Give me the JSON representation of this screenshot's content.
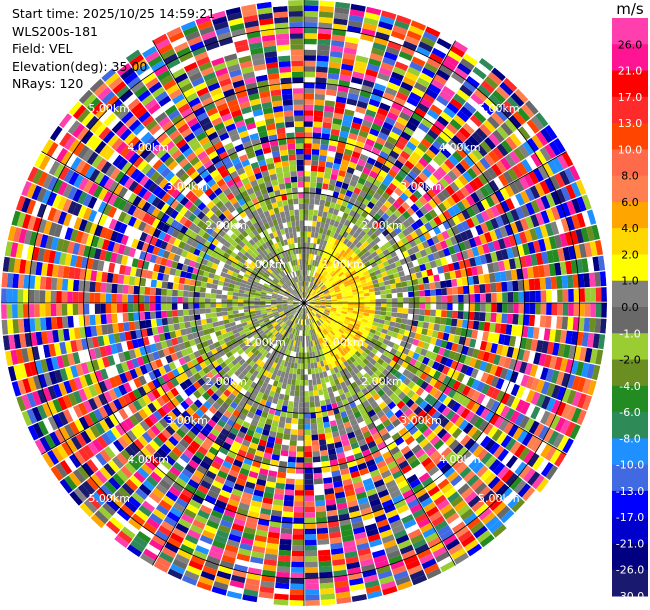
{
  "info": {
    "start_time": "Start time: 2025/10/25 14:59:21",
    "instrument": "WLS200s-181",
    "field": "Field: VEL",
    "elevation": "Elevation(deg): 35.00",
    "nrays": "NRays: 120"
  },
  "colorbar": {
    "unit": "m/s",
    "ticks": [
      "26.0",
      "21.0",
      "17.0",
      "13.0",
      "10.0",
      "8.0",
      "6.0",
      "4.0",
      "2.0",
      "1.0",
      "0.0",
      "-1.0",
      "-2.0",
      "-4.0",
      "-6.0",
      "-8.0",
      "-10.0",
      "-13.0",
      "-17.0",
      "-21.0",
      "-26.0",
      "-30.0"
    ],
    "colors": [
      "#ff3fae",
      "#ff1493",
      "#ff0000",
      "#ff2a2a",
      "#ff4500",
      "#ff6a4a",
      "#ff7f50",
      "#ffa500",
      "#ffd700",
      "#ffff00",
      "#808080",
      "#696969",
      "#9acd32",
      "#6b8e23",
      "#228b22",
      "#2e8b57",
      "#1e90ff",
      "#4169e1",
      "#0000ff",
      "#0000cd",
      "#000080",
      "#191970"
    ]
  },
  "chart_data": {
    "type": "heatmap",
    "projection": "polar-ppi",
    "field": "VEL",
    "rays": 120,
    "ring_ranges_km": [
      1.0,
      2.0,
      3.0,
      4.0,
      5.0
    ],
    "range_labels": [
      "1.00km",
      "2.00km",
      "3.00km",
      "4.00km",
      "5.00km"
    ],
    "max_range_km": 5.5,
    "inner_region": {
      "range_km": [
        0.0,
        2.5
      ],
      "velocity_pattern": "dipole: yellow (~2 to 4 m/s) to east, green (~-1 to -2 m/s) to north/south/west"
    },
    "outer_region": {
      "range_km": [
        2.5,
        5.5
      ],
      "velocity_pattern": "noise / speckle across full color scale"
    },
    "spokes_deg": [
      0,
      30,
      60,
      90,
      120,
      150,
      180,
      210,
      240,
      270,
      300,
      330
    ]
  }
}
